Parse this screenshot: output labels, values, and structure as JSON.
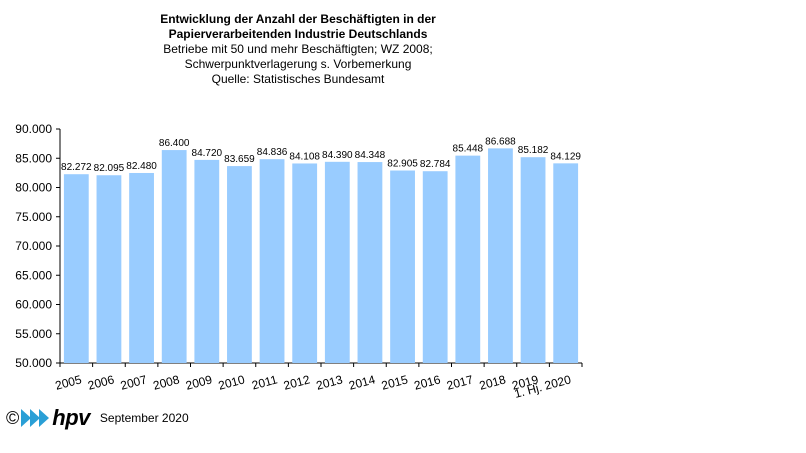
{
  "chart_data": {
    "type": "bar",
    "title": "Entwicklung der Anzahl der Beschäftigten in der Papierverarbeitenden Industrie Deutschlands",
    "title_lines": [
      "Entwicklung der Anzahl der Beschäftigten  in der",
      "Papierverarbeitenden Industrie Deutschlands"
    ],
    "subtitle_lines": [
      "Betriebe  mit 50 und  mehr Beschäftigten;  WZ 2008;",
      "Schwerpunktverlagerung   s. Vorbemerkung",
      "Quelle:  Statistisches Bundesamt"
    ],
    "categories": [
      "2005",
      "2006",
      "2007",
      "2008",
      "2009",
      "2010",
      "2011",
      "2012",
      "2013",
      "2014",
      "2015",
      "2016",
      "2017",
      "2018",
      "2019",
      "1. Hj. 2020"
    ],
    "category_lines": [
      [
        "2005"
      ],
      [
        "2006"
      ],
      [
        "2007"
      ],
      [
        "2008"
      ],
      [
        "2009"
      ],
      [
        "2010"
      ],
      [
        "2011"
      ],
      [
        "2012"
      ],
      [
        "2013"
      ],
      [
        "2014"
      ],
      [
        "2015"
      ],
      [
        "2016"
      ],
      [
        "2017"
      ],
      [
        "2018"
      ],
      [
        "2019"
      ],
      [
        "1. Hj. 2020"
      ]
    ],
    "values": [
      82272,
      82095,
      82480,
      86400,
      84720,
      83659,
      84836,
      84108,
      84390,
      84348,
      82905,
      82784,
      85448,
      86688,
      85182,
      84129
    ],
    "value_labels": [
      "82.272",
      "82.095",
      "82.480",
      "86.400",
      "84.720",
      "83.659",
      "84.836",
      "84.108",
      "84.390",
      "84.348",
      "82.905",
      "82.784",
      "85.448",
      "86.688",
      "85.182",
      "84.129"
    ],
    "ylim": [
      50000,
      90000
    ],
    "yticks": [
      50000,
      55000,
      60000,
      65000,
      70000,
      75000,
      80000,
      85000,
      90000
    ],
    "ytick_labels": [
      "50.000",
      "55.000",
      "60.000",
      "65.000",
      "70.000",
      "75.000",
      "80.000",
      "85.000",
      "90.000"
    ],
    "xlabel": "",
    "ylabel": "",
    "grid": false,
    "bar_color": "#99ccff"
  },
  "footer": {
    "copyright_symbol": "©",
    "logo_text": "hpv",
    "date": "September 2020",
    "logo_color": "#2a9fd6"
  }
}
